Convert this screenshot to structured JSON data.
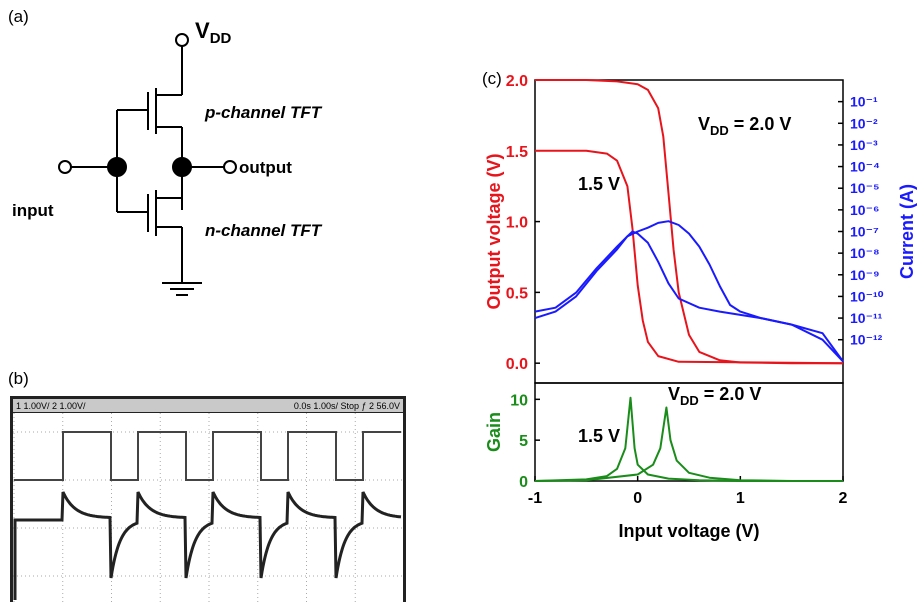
{
  "panel_labels": [
    "(a)",
    "(b)",
    "(c)"
  ],
  "circuit": {
    "vdd": {
      "main": "V",
      "sub": "DD"
    },
    "p_label": "p-channel TFT",
    "n_label": "n-channel TFT",
    "input": "input",
    "output": "output"
  },
  "oscilloscope": {
    "header_left": "1 1.00V/ 2 1.00V/",
    "header_right": "0.0s 1.00s/ Stop ƒ 2 56.0V"
  },
  "chart_data": [
    {
      "type": "line",
      "y_label": "Output voltage (V)",
      "y_color": "#e8141c",
      "y2_label": "Current (A)",
      "y2_color": "#1a1aff",
      "y2_log": true,
      "xlim": [
        -1,
        2
      ],
      "ylim": [
        -0.14,
        2.0
      ],
      "yticks": [
        {
          "value": 0,
          "label": "0.0"
        },
        0.5,
        {
          "value": 1,
          "label": "1.0"
        },
        1.5,
        {
          "value": 2,
          "label": "2.0"
        }
      ],
      "y2lim": [
        1e-14,
        1
      ],
      "y2ticks": [
        {
          "value": 0.1,
          "label": "10⁻¹"
        },
        {
          "value": 0.01,
          "label": "10⁻²"
        },
        {
          "value": 0.001,
          "label": "10⁻³"
        },
        {
          "value": 0.0001,
          "label": "10⁻⁴"
        },
        {
          "value": 1e-05,
          "label": "10⁻⁵"
        },
        {
          "value": 1e-06,
          "label": "10⁻⁶"
        },
        {
          "value": 1e-07,
          "label": "10⁻⁷"
        },
        {
          "value": 1e-08,
          "label": "10⁻⁸"
        },
        {
          "value": 1e-09,
          "label": "10⁻⁹"
        },
        {
          "value": 1e-10,
          "label": "10⁻¹⁰"
        },
        {
          "value": 1e-11,
          "label": "10⁻¹¹"
        },
        {
          "value": 1e-12,
          "label": "10⁻¹²"
        }
      ],
      "annotations": [
        {
          "main": "V",
          "sub": "DD",
          "rest": " = 2.0 V"
        },
        {
          "main": "1.5 V"
        }
      ],
      "series": [
        {
          "color": "#e8141c",
          "x": [
            -1,
            -0.5,
            -0.2,
            0,
            0.1,
            0.2,
            0.25,
            0.3,
            0.35,
            0.4,
            0.5,
            0.6,
            0.8,
            1.0,
            1.5,
            2
          ],
          "values": [
            2.0,
            2.0,
            1.99,
            1.97,
            1.93,
            1.8,
            1.6,
            1.2,
            0.8,
            0.5,
            0.2,
            0.08,
            0.02,
            0.005,
            0,
            0
          ]
        },
        {
          "color": "#e8141c",
          "x": [
            -1,
            -0.5,
            -0.3,
            -0.2,
            -0.1,
            -0.05,
            0,
            0.05,
            0.1,
            0.2,
            0.4,
            2
          ],
          "values": [
            1.5,
            1.5,
            1.48,
            1.43,
            1.25,
            0.95,
            0.55,
            0.3,
            0.15,
            0.05,
            0.01,
            0
          ]
        },
        {
          "color": "#1a1aff",
          "axis": "y2",
          "x": [
            -1,
            -0.8,
            -0.6,
            -0.4,
            -0.2,
            -0.1,
            0,
            0.1,
            0.2,
            0.3,
            0.4,
            0.5,
            0.6,
            0.7,
            0.8,
            0.9,
            1.0,
            1.2,
            1.5,
            1.8,
            2
          ],
          "values": [
            2e-11,
            3e-11,
            1.5e-10,
            2e-09,
            2e-08,
            6e-08,
            1e-07,
            1.5e-07,
            2.5e-07,
            3e-07,
            2e-07,
            8e-08,
            2e-08,
            3e-09,
            3e-10,
            4e-11,
            2e-11,
            1e-11,
            5e-12,
            2e-12,
            1e-13
          ]
        },
        {
          "color": "#1a1aff",
          "axis": "y2",
          "x": [
            -1,
            -0.8,
            -0.6,
            -0.4,
            -0.2,
            -0.1,
            -0.05,
            0,
            0.1,
            0.2,
            0.3,
            0.4,
            0.6,
            0.8,
            1.2,
            1.5,
            1.8,
            2
          ],
          "values": [
            1e-11,
            2e-11,
            1e-10,
            1.5e-09,
            1.5e-08,
            6e-08,
            1e-07,
            8e-08,
            3e-08,
            4e-09,
            4e-10,
            8e-11,
            3e-11,
            2e-11,
            1e-11,
            5e-12,
            1e-12,
            1e-13
          ]
        }
      ]
    },
    {
      "type": "line",
      "x_label": "Input voltage (V)",
      "y_label": "Gain",
      "y_color": "#1a8c1a",
      "xlim": [
        -1,
        2
      ],
      "xticks": [
        -1,
        0,
        1,
        2
      ],
      "ylim": [
        0,
        12
      ],
      "yticks": [
        0,
        5,
        10
      ],
      "annotations": [
        {
          "main": "1.5 V"
        },
        {
          "main": "V",
          "sub": "DD",
          "rest": " = 2.0 V"
        }
      ],
      "series": [
        {
          "color": "#1a8c1a",
          "x": [
            -1,
            -0.5,
            -0.3,
            -0.2,
            -0.12,
            -0.07,
            -0.03,
            0,
            0.1,
            0.3,
            0.6,
            1,
            2
          ],
          "values": [
            0,
            0.2,
            0.6,
            1.5,
            4,
            10.2,
            4,
            2,
            0.8,
            0.3,
            0.1,
            0,
            0
          ]
        },
        {
          "color": "#1a8c1a",
          "x": [
            -1,
            -0.5,
            0,
            0.15,
            0.22,
            0.28,
            0.32,
            0.38,
            0.5,
            0.7,
            1,
            1.5,
            2
          ],
          "values": [
            0,
            0.1,
            0.8,
            2,
            4,
            9,
            5,
            2.5,
            1,
            0.4,
            0.1,
            0,
            0
          ]
        }
      ]
    }
  ]
}
